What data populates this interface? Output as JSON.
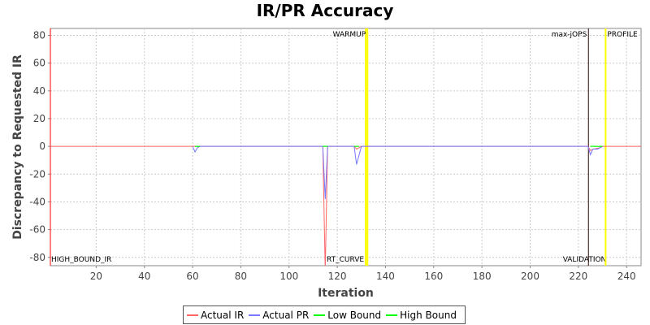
{
  "chart_data": {
    "type": "line",
    "title": "IR/PR Accuracy",
    "xlabel": "Iteration",
    "ylabel": "Discrepancy to Requested IR",
    "xlim": [
      1,
      246
    ],
    "ylim": [
      -86,
      85
    ],
    "xticks": [
      20,
      40,
      60,
      80,
      100,
      120,
      140,
      160,
      180,
      200,
      220,
      240
    ],
    "yticks": [
      -80,
      -60,
      -40,
      -20,
      0,
      20,
      40,
      60,
      80
    ],
    "grid": true,
    "legend_position": "bottom",
    "series": [
      {
        "name": "Actual IR",
        "color": "#ff6666",
        "points": [
          [
            1,
            0
          ],
          [
            114,
            0
          ],
          [
            115,
            -90
          ],
          [
            116,
            0
          ],
          [
            127,
            0
          ],
          [
            128,
            -2
          ],
          [
            129,
            -1
          ],
          [
            130,
            0
          ],
          [
            224,
            0
          ],
          [
            225,
            -3
          ],
          [
            226,
            -2
          ],
          [
            229,
            -1
          ],
          [
            230,
            0
          ],
          [
            246,
            0
          ]
        ]
      },
      {
        "name": "Actual PR",
        "color": "#7777ff",
        "points": [
          [
            60,
            0
          ],
          [
            61,
            -4
          ],
          [
            62,
            -1
          ],
          [
            63,
            0
          ],
          [
            114,
            0
          ],
          [
            115,
            -38
          ],
          [
            116,
            0
          ],
          [
            127,
            0
          ],
          [
            128,
            -13
          ],
          [
            130,
            0
          ],
          [
            224,
            0
          ],
          [
            225,
            -6
          ],
          [
            226,
            -2
          ],
          [
            228,
            -2
          ],
          [
            229,
            -1
          ],
          [
            230,
            0
          ]
        ]
      },
      {
        "name": "Low Bound",
        "color": "#00ff00",
        "segments": [
          [
            [
              61,
              0
            ],
            [
              63,
              0
            ]
          ],
          [
            [
              114,
              0
            ],
            [
              116,
              0
            ]
          ],
          [
            [
              127,
              0
            ],
            [
              129,
              0
            ]
          ],
          [
            [
              225,
              0
            ],
            [
              230,
              0
            ]
          ]
        ]
      },
      {
        "name": "High Bound",
        "color": "#00ff00",
        "segments": [
          [
            [
              61,
              0
            ],
            [
              63,
              0
            ]
          ],
          [
            [
              114,
              0
            ],
            [
              116,
              0
            ]
          ],
          [
            [
              127,
              0
            ],
            [
              129,
              0
            ]
          ],
          [
            [
              225,
              0
            ],
            [
              230,
              0
            ]
          ]
        ]
      }
    ],
    "markers": [
      {
        "label": "HIGH_BOUND_IR",
        "x": 1,
        "color": "#ff0000",
        "label_pos": "bottom-right"
      },
      {
        "label": "RT_CURVE",
        "x": 131.8,
        "color": "#ffff00",
        "label_pos": "bottom-left"
      },
      {
        "label": "WARMUP",
        "x": 132.5,
        "color": "#ffff00",
        "label_pos": "top-left"
      },
      {
        "label": "max-jOPS",
        "x": 224.2,
        "color": "#553333",
        "label_pos": "top-left"
      },
      {
        "label": "VALIDATION",
        "x": 224.2,
        "color": "#553333",
        "label_pos": "bottom-left-far"
      },
      {
        "label": "PROFILE",
        "x": 231.3,
        "color": "#ffff00",
        "label_pos": "top-right"
      }
    ]
  }
}
